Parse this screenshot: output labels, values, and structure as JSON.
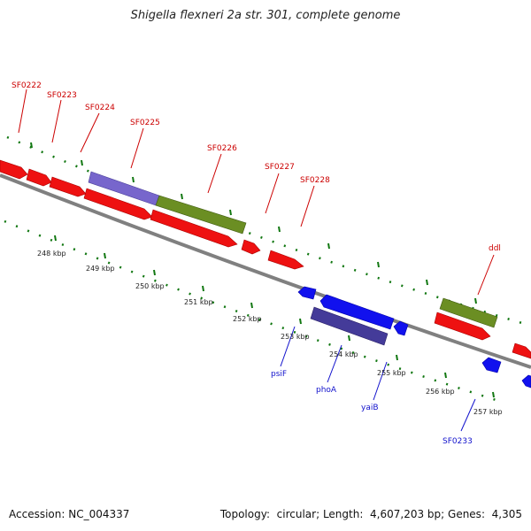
{
  "title": "Shigella flexneri 2a str. 301, complete genome",
  "footer": {
    "accession_label": "Accession:",
    "accession_value": "NC_004337",
    "topology_label": "Topology:",
    "topology_value": "circular",
    "length_label": "Length:",
    "length_value": "4,607,203 bp",
    "genes_label": "Genes:",
    "genes_value": "4,305"
  },
  "colors": {
    "gene_red": "#ee1111",
    "gene_blue": "#1111ee",
    "gene_green": "#6b8e23",
    "gene_purple": "#7766cc",
    "gene_navy": "#443b99",
    "label_red": "#cc0000",
    "label_blue": "#1111cc",
    "tick_green": "#117711",
    "backbone": "#808080"
  },
  "top_labels": [
    "SF0222",
    "SF0223",
    "SF0224",
    "SF0225",
    "SF0226",
    "SF0227",
    "SF0228",
    "ddl"
  ],
  "bottom_labels": [
    "psiF",
    "phoA",
    "yaiB",
    "SF0233"
  ],
  "ruler_labels": [
    "248 kbp",
    "249 kbp",
    "250 kbp",
    "251 kbp",
    "252 kbp",
    "253 kbp",
    "254 kbp",
    "255 kbp",
    "256 kbp",
    "257 kbp"
  ]
}
